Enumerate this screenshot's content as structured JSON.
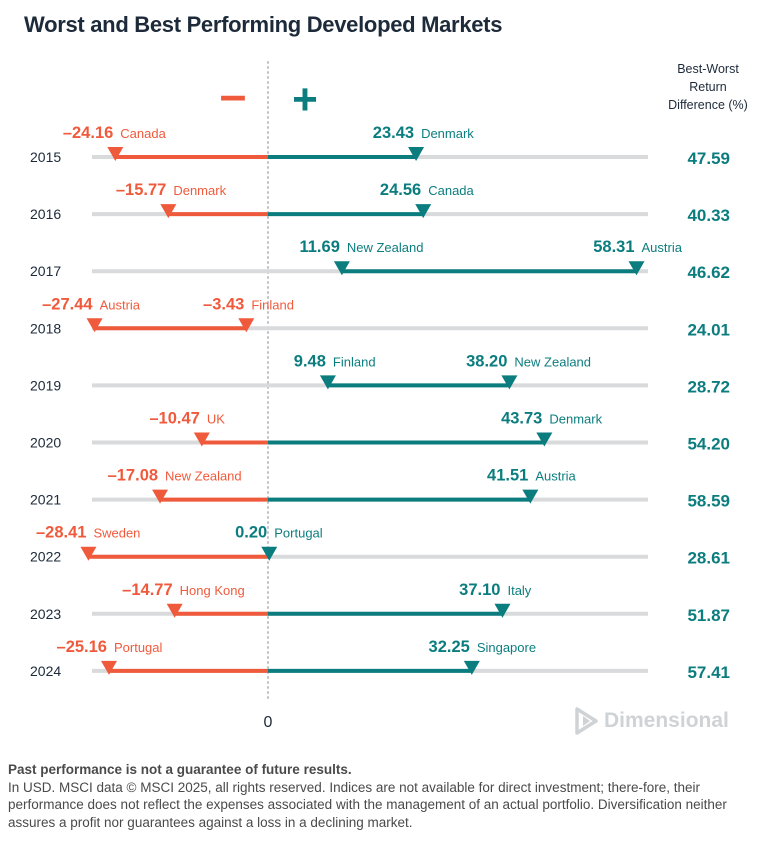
{
  "title": "Worst and Best Performing Developed Markets",
  "signs": {
    "negative": "–",
    "positive": "+"
  },
  "difference_header": [
    "Best-Worst",
    "Return",
    "Difference (%)"
  ],
  "zero_label": "0",
  "brand": "Dimensional",
  "footnote": {
    "bold_line": "Past performance is not a guarantee of future results.",
    "body": "In USD. MSCI data © MSCI 2025, all rights reserved. Indices are not available for direct investment; there-fore, their performance does not reflect the expenses associated with the management of an actual portfolio. Diversification neither assures a profit nor guarantees against a loss in a declining market."
  },
  "colors": {
    "negative": "#f05a3c",
    "positive": "#0c7d7f",
    "track": "#d9dadb",
    "zero_line": "#bfc2c4",
    "text": "#1d2a3a"
  },
  "chart_data": {
    "type": "range",
    "xlim": [
      -30,
      60
    ],
    "rows": [
      {
        "year": "2015",
        "worst": {
          "value": -24.16,
          "label": "–24.16",
          "country": "Canada"
        },
        "best": {
          "value": 23.43,
          "label": "23.43",
          "country": "Denmark"
        },
        "difference": "47.59"
      },
      {
        "year": "2016",
        "worst": {
          "value": -15.77,
          "label": "–15.77",
          "country": "Denmark"
        },
        "best": {
          "value": 24.56,
          "label": "24.56",
          "country": "Canada"
        },
        "difference": "40.33"
      },
      {
        "year": "2017",
        "worst": {
          "value": 11.69,
          "label": "11.69",
          "country": "New Zealand"
        },
        "best": {
          "value": 58.31,
          "label": "58.31",
          "country": "Austria"
        },
        "difference": "46.62"
      },
      {
        "year": "2018",
        "worst": {
          "value": -27.44,
          "label": "–27.44",
          "country": "Austria"
        },
        "best": {
          "value": -3.43,
          "label": "–3.43",
          "country": "Finland"
        },
        "difference": "24.01"
      },
      {
        "year": "2019",
        "worst": {
          "value": 9.48,
          "label": "9.48",
          "country": "Finland"
        },
        "best": {
          "value": 38.2,
          "label": "38.20",
          "country": "New Zealand"
        },
        "difference": "28.72"
      },
      {
        "year": "2020",
        "worst": {
          "value": -10.47,
          "label": "–10.47",
          "country": "UK"
        },
        "best": {
          "value": 43.73,
          "label": "43.73",
          "country": "Denmark"
        },
        "difference": "54.20"
      },
      {
        "year": "2021",
        "worst": {
          "value": -17.08,
          "label": "–17.08",
          "country": "New Zealand"
        },
        "best": {
          "value": 41.51,
          "label": "41.51",
          "country": "Austria"
        },
        "difference": "58.59"
      },
      {
        "year": "2022",
        "worst": {
          "value": -28.41,
          "label": "–28.41",
          "country": "Sweden"
        },
        "best": {
          "value": 0.2,
          "label": "0.20",
          "country": "Portugal"
        },
        "difference": "28.61"
      },
      {
        "year": "2023",
        "worst": {
          "value": -14.77,
          "label": "–14.77",
          "country": "Hong Kong"
        },
        "best": {
          "value": 37.1,
          "label": "37.10",
          "country": "Italy"
        },
        "difference": "51.87"
      },
      {
        "year": "2024",
        "worst": {
          "value": -25.16,
          "label": "–25.16",
          "country": "Portugal"
        },
        "best": {
          "value": 32.25,
          "label": "32.25",
          "country": "Singapore"
        },
        "difference": "57.41"
      }
    ]
  }
}
